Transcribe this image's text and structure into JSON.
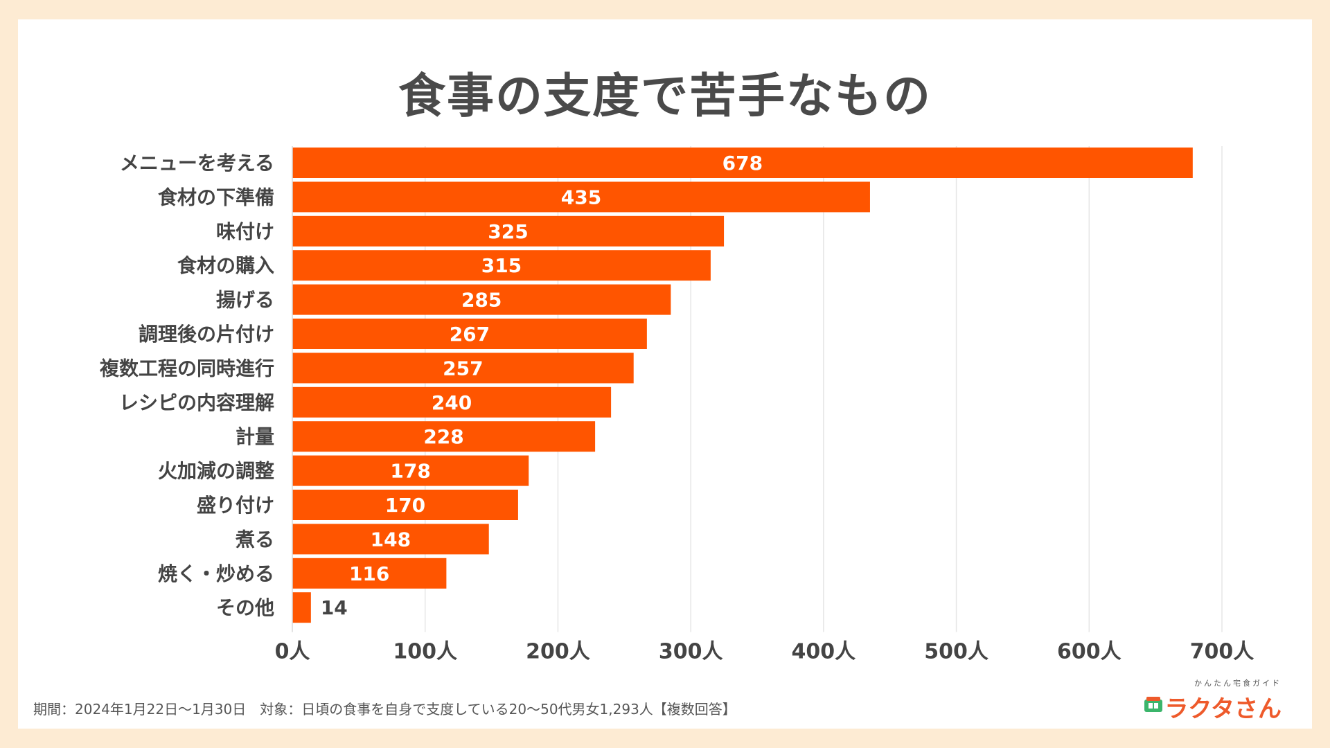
{
  "title": "食事の支度で苦手なもの",
  "chart_data": {
    "type": "bar",
    "orientation": "horizontal",
    "title": "食事の支度で苦手なもの",
    "categories": [
      "メニューを考える",
      "食材の下準備",
      "味付け",
      "食材の購入",
      "揚げる",
      "調理後の片付け",
      "複数工程の同時進行",
      "レシピの内容理解",
      "計量",
      "火加減の調整",
      "盛り付け",
      "煮る",
      "焼く・炒める",
      "その他"
    ],
    "values": [
      678,
      435,
      325,
      315,
      285,
      267,
      257,
      240,
      228,
      178,
      170,
      148,
      116,
      14
    ],
    "data_labels": [
      "678",
      "435",
      "325",
      "315",
      "285",
      "267",
      "257",
      "240",
      "228",
      "178",
      "170",
      "148",
      "116",
      "14"
    ],
    "xlim": [
      0,
      700
    ],
    "xticks": [
      0,
      100,
      200,
      300,
      400,
      500,
      600,
      700
    ],
    "xtick_labels": [
      "0人",
      "100人",
      "200人",
      "300人",
      "400人",
      "500人",
      "600人",
      "700人"
    ],
    "grid": true,
    "colors": {
      "bar": "#ff5500",
      "grid": "#e6e6e6",
      "category_text": "#444444",
      "label_inside": "#ffffff",
      "label_outside": "#444444"
    }
  },
  "footnote": "期間：2024年1月22日〜1月30日　対象：日頃の食事を自身で支度している20〜50代男女1,293人【複数回答】",
  "logo": {
    "tagline": "かんたん宅食ガイド",
    "name": "ラクタさん",
    "icon": "bento-box-icon"
  }
}
